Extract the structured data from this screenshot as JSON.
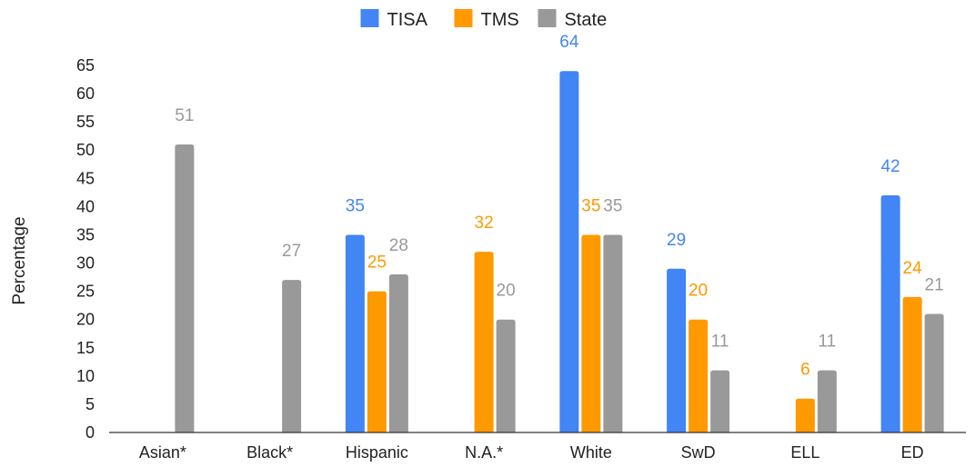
{
  "chart_data": {
    "type": "bar",
    "title": "",
    "xlabel": "",
    "ylabel": "Percentage",
    "ylim": [
      0,
      65
    ],
    "yticks": [
      "0",
      "5",
      "10",
      "15",
      "20",
      "25",
      "30",
      "35",
      "40",
      "45",
      "50",
      "55",
      "60",
      "65"
    ],
    "grid": false,
    "legend_position": "top-center",
    "categories": [
      "Asian*",
      "Black*",
      "Hispanic",
      "N.A.*",
      "White",
      "SwD",
      "ELL",
      "ED"
    ],
    "series": [
      {
        "name": "TISA",
        "color": "#4285F4",
        "values": [
          null,
          null,
          35,
          null,
          64,
          29,
          null,
          42
        ]
      },
      {
        "name": "TMS",
        "color": "#FF9900",
        "values": [
          null,
          null,
          25,
          32,
          35,
          20,
          6,
          24
        ]
      },
      {
        "name": "State",
        "color": "#999999",
        "values": [
          51,
          27,
          28,
          20,
          35,
          11,
          11,
          21
        ]
      }
    ]
  }
}
